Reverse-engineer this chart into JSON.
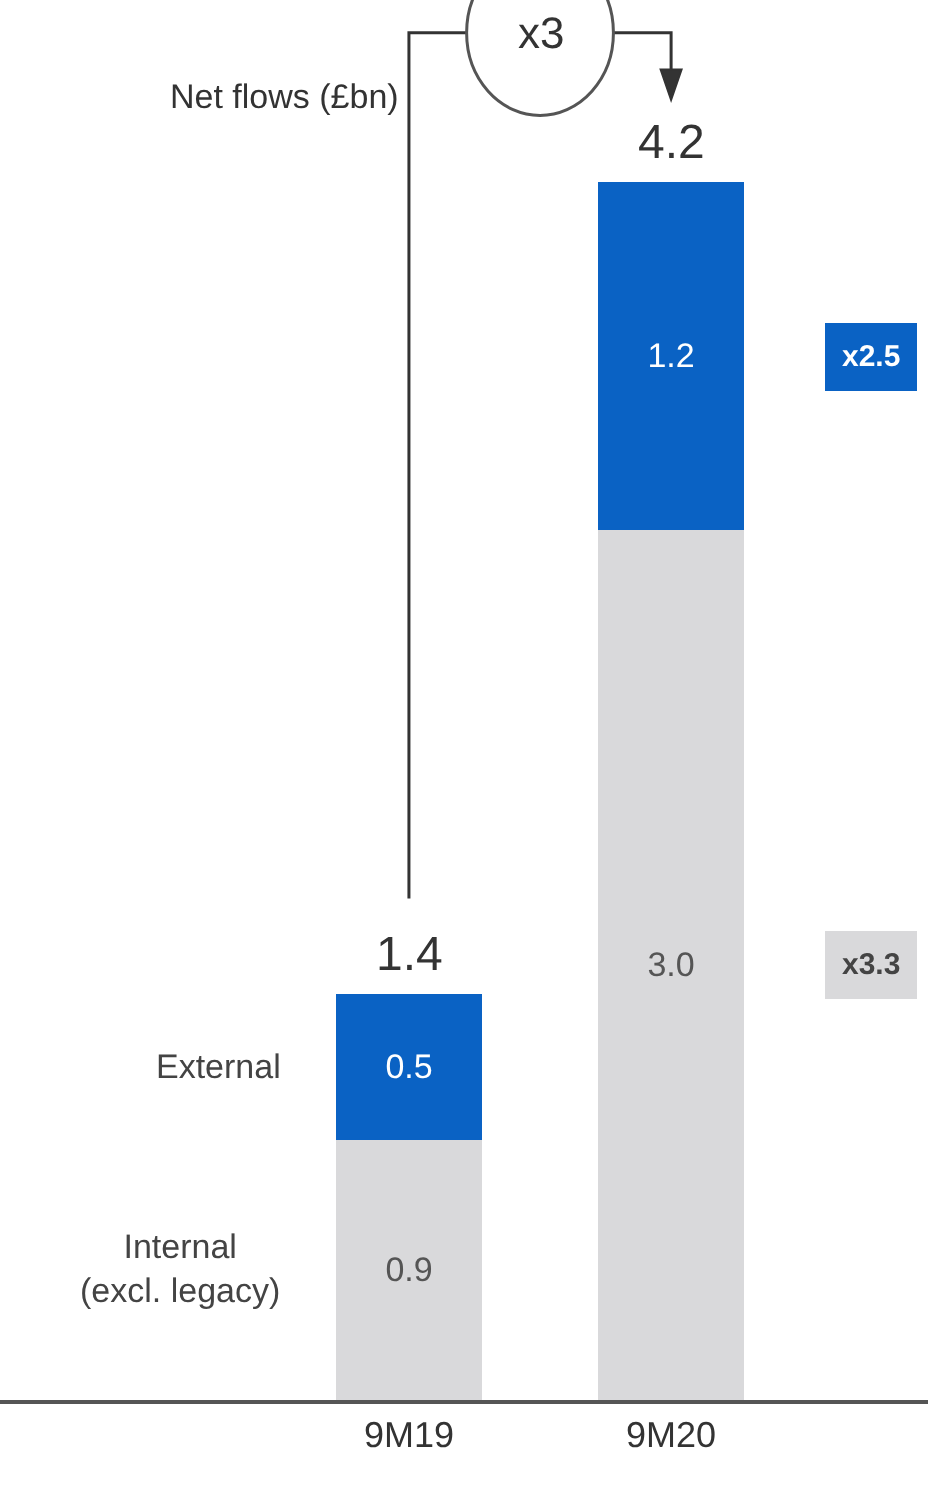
{
  "chart_data": {
    "type": "bar",
    "stacked": true,
    "title": "Net flows (£bn)",
    "categories": [
      "9M19",
      "9M20"
    ],
    "series": [
      {
        "name": "Internal\n(excl. legacy)",
        "color": "#d9d9db",
        "values": [
          0.9,
          3.0
        ],
        "value_labels": [
          "0.9",
          "3.0"
        ]
      },
      {
        "name": "External",
        "color": "#0a62c4",
        "values": [
          0.5,
          1.2
        ],
        "value_labels": [
          "0.5",
          "1.2"
        ]
      }
    ],
    "totals": [
      "1.4",
      "4.2"
    ],
    "legend": false,
    "annotations": [
      "x3",
      "x2.5",
      "x3.3"
    ]
  }
}
